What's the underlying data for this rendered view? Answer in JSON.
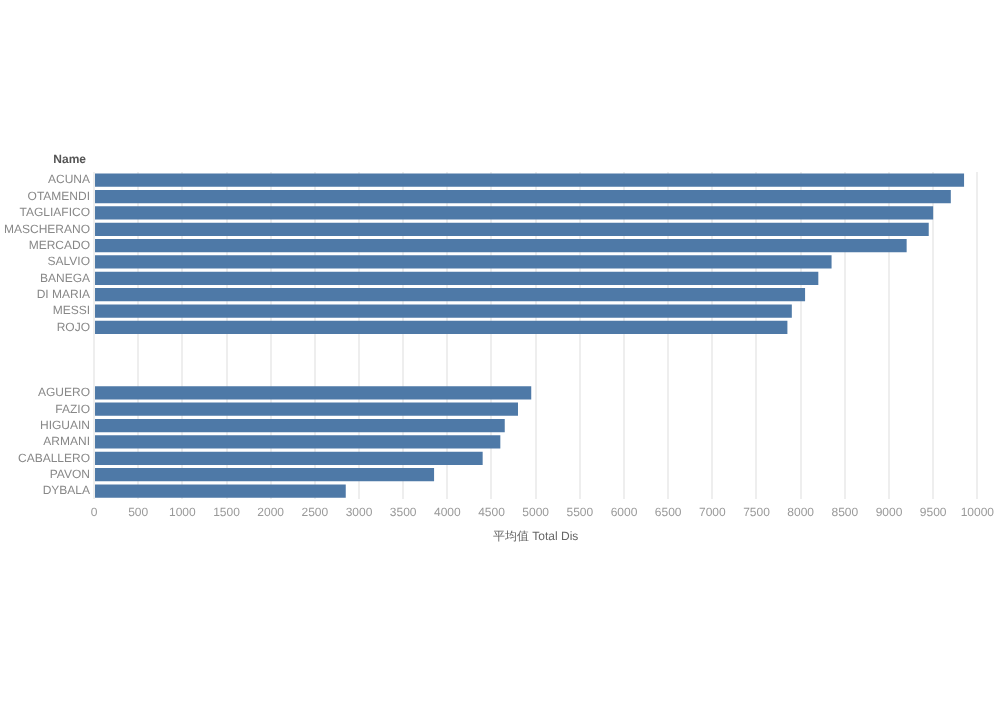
{
  "chart_data": {
    "type": "bar",
    "orientation": "horizontal",
    "ylabel": "Name",
    "xlabel": "平均值 Total Dis",
    "categories": [
      "ACUNA",
      "OTAMENDI",
      "TAGLIAFICO",
      "MASCHERANO",
      "MERCADO",
      "SALVIO",
      "BANEGA",
      "DI MARIA",
      "MESSI",
      "ROJO",
      null,
      null,
      null,
      "AGUERO",
      "FAZIO",
      "HIGUAIN",
      "ARMANI",
      "CABALLERO",
      "PAVON",
      "DYBALA"
    ],
    "values": [
      9850,
      9700,
      9500,
      9450,
      9200,
      8350,
      8200,
      8050,
      7900,
      7850,
      null,
      null,
      null,
      4950,
      4800,
      4650,
      4600,
      4400,
      3850,
      2850
    ],
    "color": "#4e79a7",
    "xlim": [
      0,
      10000
    ],
    "xticks": [
      0,
      500,
      1000,
      1500,
      2000,
      2500,
      3000,
      3500,
      4000,
      4500,
      5000,
      5500,
      6000,
      6500,
      7000,
      7500,
      8000,
      8500,
      9000,
      9500,
      10000
    ],
    "grid": "x",
    "legend": false
  }
}
